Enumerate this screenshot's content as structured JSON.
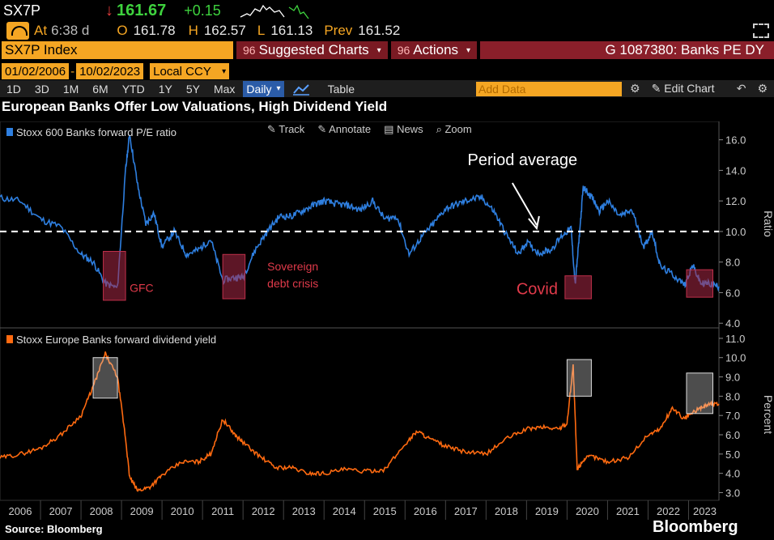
{
  "quote": {
    "ticker": "SX7P",
    "direction": "↓",
    "last": "161.67",
    "change": "+0.15",
    "at_label": "At",
    "time": "6:38 d",
    "open_label": "O",
    "open": "161.78",
    "high_label": "H",
    "high": "162.57",
    "low_label": "L",
    "low": "161.13",
    "prev_label": "Prev",
    "prev": "161.52"
  },
  "security": {
    "name": "SX7P Index",
    "suggested_num": "96",
    "suggested": "Suggested Charts",
    "actions_num": "96",
    "actions": "Actions",
    "chart_id": "G 1087380: Banks PE DY"
  },
  "range": {
    "start": "01/02/2006",
    "end": "10/02/2023",
    "currency": "Local CCY"
  },
  "toolbar": {
    "periods": [
      "1D",
      "3D",
      "1M",
      "6M",
      "YTD",
      "1Y",
      "5Y",
      "Max"
    ],
    "frequency": "Daily",
    "table": "Table",
    "add_data": "Add Data",
    "edit_chart": "Edit Chart"
  },
  "title": "European Banks Offer Low Valuations, High Dividend Yield",
  "chart_tools": [
    "Track",
    "Annotate",
    "News",
    "Zoom"
  ],
  "footer": {
    "source": "Source: Bloomberg",
    "brand": "Bloomberg"
  },
  "colors": {
    "pe": "#2e7fe0",
    "dy": "#ff6a10",
    "accent": "#f5a623",
    "annotation": "#e03a4a"
  },
  "chart_data": [
    {
      "type": "line",
      "series": [
        {
          "name": "Stoxx 600 Banks forward P/E ratio",
          "x": [
            2006.0,
            2006.5,
            2007.0,
            2007.5,
            2008.0,
            2008.3,
            2008.6,
            2008.9,
            2009.1,
            2009.2,
            2009.4,
            2009.6,
            2009.8,
            2010.0,
            2010.3,
            2010.6,
            2010.9,
            2011.2,
            2011.5,
            2011.8,
            2012.0,
            2012.3,
            2012.6,
            2012.9,
            2013.2,
            2013.5,
            2013.8,
            2014.0,
            2014.3,
            2014.6,
            2014.9,
            2015.2,
            2015.5,
            2015.8,
            2016.1,
            2016.4,
            2016.7,
            2017.0,
            2017.3,
            2017.6,
            2017.9,
            2018.2,
            2018.5,
            2018.8,
            2019.0,
            2019.3,
            2019.6,
            2019.9,
            2020.1,
            2020.2,
            2020.3,
            2020.4,
            2020.6,
            2020.8,
            2021.0,
            2021.3,
            2021.6,
            2021.9,
            2022.1,
            2022.3,
            2022.6,
            2022.9,
            2023.1,
            2023.3,
            2023.5,
            2023.75
          ],
          "y": [
            12.2,
            12.0,
            10.8,
            10.3,
            8.5,
            8.0,
            6.6,
            6.3,
            14.0,
            16.4,
            13.0,
            10.5,
            11.2,
            9.0,
            10.0,
            8.5,
            8.8,
            9.5,
            6.8,
            7.0,
            7.0,
            8.8,
            10.0,
            11.0,
            11.0,
            11.4,
            11.8,
            12.0,
            11.8,
            11.7,
            11.4,
            12.0,
            10.8,
            11.0,
            8.5,
            9.6,
            10.5,
            11.5,
            11.8,
            12.1,
            12.2,
            11.3,
            9.8,
            8.5,
            9.3,
            8.6,
            8.8,
            9.8,
            10.2,
            6.5,
            9.6,
            12.9,
            12.3,
            11.3,
            12.0,
            11.0,
            11.4,
            9.0,
            10.0,
            7.7,
            7.2,
            6.5,
            7.8,
            6.6,
            6.6,
            6.4
          ],
          "unit": "Ratio"
        }
      ],
      "reference_line": {
        "label": "Period average",
        "value": 10.0
      },
      "annotations": [
        "GFC",
        "Sovereign debt crisis",
        "Covid"
      ],
      "ylabel": "Ratio",
      "yticks": [
        4.0,
        6.0,
        8.0,
        10.0,
        12.0,
        14.0,
        16.0
      ],
      "ylim": [
        3.8,
        17.2
      ]
    },
    {
      "type": "line",
      "series": [
        {
          "name": "Stoxx Europe Banks forward dividend yield",
          "x": [
            2006.0,
            2006.5,
            2007.0,
            2007.5,
            2008.0,
            2008.3,
            2008.6,
            2008.9,
            2009.1,
            2009.2,
            2009.4,
            2009.7,
            2010.0,
            2010.5,
            2010.9,
            2011.2,
            2011.5,
            2011.8,
            2012.0,
            2012.4,
            2012.8,
            2013.2,
            2013.6,
            2014.0,
            2014.5,
            2015.0,
            2015.5,
            2016.0,
            2016.3,
            2016.6,
            2017.0,
            2017.5,
            2018.0,
            2018.5,
            2019.0,
            2019.4,
            2019.8,
            2020.0,
            2020.15,
            2020.25,
            2020.4,
            2020.6,
            2021.0,
            2021.5,
            2022.0,
            2022.3,
            2022.6,
            2022.9,
            2023.0,
            2023.3,
            2023.5,
            2023.75
          ],
          "y": [
            4.8,
            5.0,
            5.3,
            6.0,
            7.0,
            8.5,
            10.2,
            9.0,
            5.8,
            3.8,
            3.1,
            3.3,
            3.9,
            4.6,
            4.6,
            5.0,
            6.8,
            6.0,
            5.6,
            4.9,
            4.3,
            4.3,
            4.0,
            4.0,
            4.2,
            4.1,
            4.2,
            5.5,
            6.2,
            5.8,
            5.4,
            5.1,
            5.0,
            5.8,
            6.3,
            6.4,
            6.3,
            6.6,
            9.6,
            4.2,
            4.7,
            4.9,
            4.6,
            4.8,
            6.0,
            6.3,
            7.4,
            6.8,
            7.0,
            7.4,
            7.6,
            7.6
          ],
          "unit": "Percent"
        }
      ],
      "ylabel": "Percent",
      "yticks": [
        3.0,
        4.0,
        5.0,
        6.0,
        7.0,
        8.0,
        9.0,
        10.0,
        11.0
      ],
      "ylim": [
        2.6,
        11.5
      ]
    }
  ],
  "x_axis": {
    "labels": [
      "2006",
      "2007",
      "2008",
      "2009",
      "2010",
      "2011",
      "2012",
      "2013",
      "2014",
      "2015",
      "2016",
      "2017",
      "2018",
      "2019",
      "2020",
      "2021",
      "2022",
      "2023"
    ],
    "range": [
      2006.0,
      2023.75
    ]
  }
}
